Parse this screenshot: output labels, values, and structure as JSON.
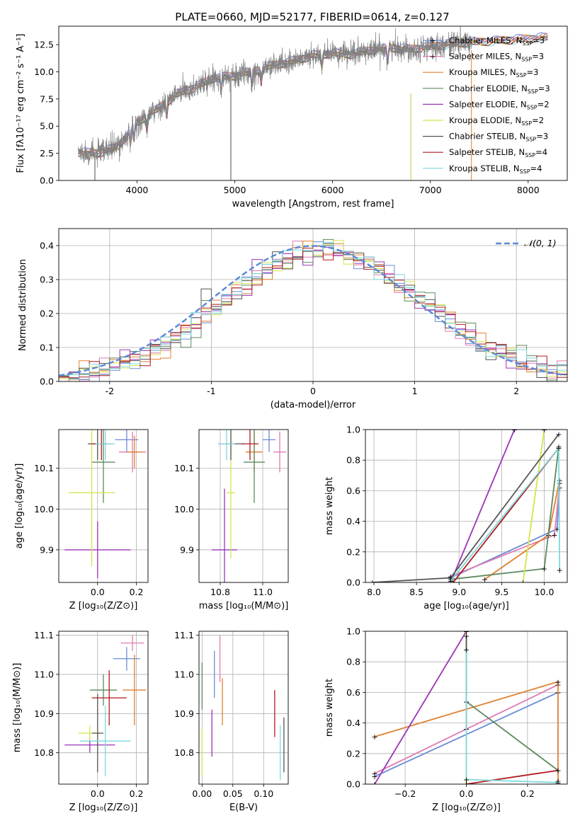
{
  "figure": {
    "title": "PLATE=0660, MJD=52177, FIBERID=0614, z=0.127"
  },
  "colors": {
    "Chabrier MILES": "#6a8cd6",
    "Salpeter MILES": "#e07ab4",
    "Kroupa MILES": "#e0812f",
    "Chabrier ELODIE": "#5c8a5e",
    "Salpeter ELODIE": "#9b35b5",
    "Kroupa ELODIE": "#d4e54a",
    "Chabrier STELIB": "#555555",
    "Salpeter STELIB": "#b0191f",
    "Kroupa STELIB": "#7fd7dc",
    "normal": "#5b8ad8"
  },
  "chart_data": [
    {
      "id": "spectrum",
      "type": "line",
      "title": "PLATE=0660, MJD=52177, FIBERID=0614, z=0.127",
      "xlabel": "wavelength [Angstrom, rest frame]",
      "ylabel": "Flux [fλ10⁻¹⁷ erg cm⁻² s⁻¹ A⁻¹]",
      "xlim": [
        3200,
        8400
      ],
      "ylim": [
        0,
        14.2
      ],
      "xticks": [
        4000,
        5000,
        6000,
        7000,
        8000
      ],
      "yticks": [
        0.0,
        2.5,
        5.0,
        7.5,
        10.0,
        12.5
      ],
      "legend_position": "top-right",
      "legend": [
        {
          "name": "Chabrier MILES",
          "nssp": "3"
        },
        {
          "name": "Salpeter MILES",
          "nssp": "3"
        },
        {
          "name": "Kroupa MILES",
          "nssp": "3"
        },
        {
          "name": "Chabrier ELODIE",
          "nssp": "3"
        },
        {
          "name": "Salpeter ELODIE",
          "nssp": "2"
        },
        {
          "name": "Kroupa ELODIE",
          "nssp": "2"
        },
        {
          "name": "Chabrier STELIB",
          "nssp": "3"
        },
        {
          "name": "Salpeter STELIB",
          "nssp": "4"
        },
        {
          "name": "Kroupa STELIB",
          "nssp": "4"
        }
      ],
      "continuum": {
        "x": [
          3400,
          3600,
          3800,
          4000,
          4200,
          4400,
          4600,
          4800,
          5000,
          5200,
          5400,
          5600,
          5800,
          6000,
          6200,
          6400,
          6600,
          6800,
          7000,
          7200,
          7400
        ],
        "y": [
          2.6,
          2.5,
          3.1,
          5.3,
          6.5,
          7.9,
          8.6,
          9.5,
          9.6,
          10.1,
          10.6,
          11.0,
          11.5,
          11.7,
          11.6,
          12.0,
          12.2,
          12.1,
          12.3,
          12.6,
          12.7
        ]
      },
      "data_extent": [
        3400,
        7420
      ],
      "model_extent": [
        3400,
        8200
      ]
    },
    {
      "id": "residuals",
      "type": "line",
      "xlabel": "(data-model)/error",
      "ylabel": "Normed distribution",
      "xlim": [
        -2.5,
        2.5
      ],
      "ylim": [
        0,
        0.45
      ],
      "xticks": [
        -2,
        -1,
        0,
        1,
        2
      ],
      "yticks": [
        0.0,
        0.1,
        0.2,
        0.3,
        0.4
      ],
      "legend_position": "top-right",
      "legend": [
        {
          "name": "𝒩(0, 1)"
        }
      ],
      "bin_width": 0.1
    },
    {
      "id": "age-vs-Z",
      "type": "scatter",
      "xlabel": "Z [log₁₀(Z/Z⊙)]",
      "ylabel": "age  [log₁₀(age/yr)]",
      "xlim": [
        -0.2,
        0.26
      ],
      "ylim": [
        9.82,
        10.195
      ],
      "xticks": [
        0.0,
        0.2
      ],
      "yticks": [
        9.9,
        10.0,
        10.1
      ],
      "points": [
        {
          "series": "Chabrier MILES",
          "x": 0.15,
          "y": 10.17,
          "xerr": 0.06,
          "yerr": 0.03
        },
        {
          "series": "Salpeter MILES",
          "x": 0.18,
          "y": 10.14,
          "xerr": 0.07,
          "yerr": 0.05
        },
        {
          "series": "Kroupa MILES",
          "x": 0.19,
          "y": 10.14,
          "xerr": 0.04,
          "yerr": 0.04
        },
        {
          "series": "Chabrier ELODIE",
          "x": 0.03,
          "y": 10.115,
          "xerr": 0.06,
          "yerr": 0.1
        },
        {
          "series": "Salpeter ELODIE",
          "x": 0.0,
          "y": 9.9,
          "xerr": 0.17,
          "yerr": 0.07
        },
        {
          "series": "Kroupa ELODIE",
          "x": -0.03,
          "y": 10.04,
          "xerr": 0.12,
          "yerr": 0.18
        },
        {
          "series": "Chabrier STELIB",
          "x": 0.0,
          "y": 10.16,
          "xerr": 0.05,
          "yerr": 0.04
        },
        {
          "series": "Salpeter STELIB",
          "x": 0.02,
          "y": 10.16,
          "xerr": 0.05,
          "yerr": 0.04
        },
        {
          "series": "Kroupa STELIB",
          "x": 0.04,
          "y": 10.16,
          "xerr": 0.05,
          "yerr": 0.04
        }
      ]
    },
    {
      "id": "age-vs-mass",
      "type": "scatter",
      "xlabel": "mass [log₁₀(M/M⊙)]",
      "ylabel": "",
      "xlim": [
        10.7,
        11.12
      ],
      "ylim": [
        9.82,
        10.195
      ],
      "xticks": [
        10.8,
        11.0
      ],
      "yticks": [
        9.9,
        10.0,
        10.1
      ],
      "points": [
        {
          "series": "Chabrier MILES",
          "x": 11.03,
          "y": 10.17,
          "xerr": 0.03,
          "yerr": 0.03
        },
        {
          "series": "Salpeter MILES",
          "x": 11.08,
          "y": 10.14,
          "xerr": 0.03,
          "yerr": 0.05
        },
        {
          "series": "Kroupa MILES",
          "x": 10.96,
          "y": 10.14,
          "xerr": 0.04,
          "yerr": 0.05
        },
        {
          "series": "Chabrier ELODIE",
          "x": 10.96,
          "y": 10.115,
          "xerr": 0.05,
          "yerr": 0.1
        },
        {
          "series": "Salpeter ELODIE",
          "x": 10.82,
          "y": 9.9,
          "xerr": 0.06,
          "yerr": 0.15
        },
        {
          "series": "Kroupa ELODIE",
          "x": 10.85,
          "y": 10.04,
          "xerr": 0.02,
          "yerr": 0.16
        },
        {
          "series": "Chabrier STELIB",
          "x": 10.85,
          "y": 10.16,
          "xerr": 0.06,
          "yerr": 0.04
        },
        {
          "series": "Salpeter STELIB",
          "x": 10.94,
          "y": 10.16,
          "xerr": 0.04,
          "yerr": 0.04
        },
        {
          "series": "Kroupa STELIB",
          "x": 10.83,
          "y": 10.16,
          "xerr": 0.04,
          "yerr": 0.04
        }
      ]
    },
    {
      "id": "mass-weight-vs-age",
      "type": "line",
      "xlabel": "age  [log₁₀(age/yr)]",
      "ylabel": "mass weight",
      "xlim": [
        7.9,
        10.27
      ],
      "ylim": [
        0,
        1
      ],
      "xticks": [
        8.0,
        8.5,
        9.0,
        9.5,
        10.0
      ],
      "yticks": [
        0.0,
        0.2,
        0.4,
        0.6,
        0.8,
        1.0
      ],
      "series": [
        {
          "name": "Chabrier MILES",
          "x": [
            8.9,
            10.15,
            10.18
          ],
          "y": [
            0.03,
            0.35,
            0.62
          ]
        },
        {
          "name": "Salpeter MILES",
          "x": [
            8.9,
            10.12,
            10.18
          ],
          "y": [
            0.04,
            0.31,
            0.65
          ]
        },
        {
          "name": "Kroupa MILES",
          "x": [
            9.3,
            10.05,
            10.18
          ],
          "y": [
            0.02,
            0.31,
            0.67
          ]
        },
        {
          "name": "Chabrier ELODIE",
          "x": [
            8.9,
            10.0,
            10.17
          ],
          "y": [
            0.02,
            0.09,
            0.89
          ]
        },
        {
          "name": "Salpeter ELODIE",
          "x": [
            8.9,
            9.65
          ],
          "y": [
            0.0,
            1.0
          ]
        },
        {
          "name": "Kroupa ELODIE",
          "x": [
            9.75,
            10.0
          ],
          "y": [
            0.0,
            1.0
          ]
        },
        {
          "name": "Chabrier STELIB",
          "x": [
            7.98,
            8.9,
            10.17
          ],
          "y": [
            0.0,
            0.03,
            0.97
          ]
        },
        {
          "name": "Salpeter STELIB",
          "x": [
            8.93,
            10.17
          ],
          "y": [
            0.0,
            0.88
          ]
        },
        {
          "name": "Kroupa STELIB",
          "x": [
            8.9,
            10.17,
            10.18
          ],
          "y": [
            0.01,
            0.88,
            0.08
          ]
        }
      ]
    },
    {
      "id": "mass-vs-Z",
      "type": "scatter",
      "xlabel": "Z [log₁₀(Z/Z⊙)]",
      "ylabel": "mass [log₁₀(M/M⊙)]",
      "xlim": [
        -0.2,
        0.26
      ],
      "ylim": [
        10.72,
        11.11
      ],
      "xticks": [
        0.0,
        0.2
      ],
      "yticks": [
        10.8,
        10.9,
        11.0,
        11.1
      ],
      "points": [
        {
          "series": "Chabrier MILES",
          "x": 0.15,
          "y": 11.04,
          "xerr": 0.07,
          "yerr": 0.03
        },
        {
          "series": "Salpeter MILES",
          "x": 0.18,
          "y": 11.08,
          "xerr": 0.06,
          "yerr": 0.02
        },
        {
          "series": "Kroupa MILES",
          "x": 0.19,
          "y": 10.96,
          "xerr": 0.06,
          "yerr": 0.09
        },
        {
          "series": "Chabrier ELODIE",
          "x": 0.03,
          "y": 10.96,
          "xerr": 0.07,
          "yerr": 0.04
        },
        {
          "series": "Salpeter ELODIE",
          "x": -0.04,
          "y": 10.82,
          "xerr": 0.13,
          "yerr": 0.02
        },
        {
          "series": "Kroupa ELODIE",
          "x": -0.04,
          "y": 10.85,
          "xerr": 0.06,
          "yerr": 0.02
        },
        {
          "series": "Chabrier STELIB",
          "x": 0.0,
          "y": 10.85,
          "xerr": 0.03,
          "yerr": 0.1
        },
        {
          "series": "Salpeter STELIB",
          "x": 0.06,
          "y": 10.94,
          "xerr": 0.09,
          "yerr": 0.07
        },
        {
          "series": "Kroupa STELIB",
          "x": 0.04,
          "y": 10.83,
          "xerr": 0.13,
          "yerr": 0.09
        }
      ]
    },
    {
      "id": "mass-vs-EBV",
      "type": "scatter",
      "xlabel": "E(B-V)",
      "ylabel": "",
      "xlim": [
        -0.005,
        0.14
      ],
      "ylim": [
        10.72,
        11.11
      ],
      "xticks": [
        0.0,
        0.05,
        0.1
      ],
      "xtick_labels": [
        "0.00",
        "0.05",
        "0.10"
      ],
      "yticks": [
        10.8,
        10.9,
        11.0,
        11.1
      ],
      "points": [
        {
          "series": "Chabrier MILES",
          "x": 0.02,
          "y": 11.0,
          "xerr": 0,
          "yerr": 0.06
        },
        {
          "series": "Salpeter MILES",
          "x": 0.029,
          "y": 11.04,
          "xerr": 0,
          "yerr": 0.06
        },
        {
          "series": "Kroupa MILES",
          "x": 0.033,
          "y": 10.93,
          "xerr": 0,
          "yerr": 0.06
        },
        {
          "series": "Chabrier ELODIE",
          "x": 0.0,
          "y": 10.97,
          "xerr": 0,
          "yerr": 0.06
        },
        {
          "series": "Salpeter ELODIE",
          "x": 0.016,
          "y": 10.85,
          "xerr": 0,
          "yerr": 0.06
        },
        {
          "series": "Kroupa ELODIE",
          "x": 0.0,
          "y": 10.8,
          "xerr": 0,
          "yerr": 0.06
        },
        {
          "series": "Chabrier STELIB",
          "x": 0.133,
          "y": 10.82,
          "xerr": 0,
          "yerr": 0.07
        },
        {
          "series": "Salpeter STELIB",
          "x": 0.118,
          "y": 10.9,
          "xerr": 0,
          "yerr": 0.06
        },
        {
          "series": "Kroupa STELIB",
          "x": 0.127,
          "y": 10.8,
          "xerr": 0,
          "yerr": 0.07
        }
      ]
    },
    {
      "id": "mass-weight-vs-Z",
      "type": "line",
      "xlabel": "Z [log₁₀(Z/Z⊙)]",
      "ylabel": "mass weight",
      "xlim": [
        -0.33,
        0.33
      ],
      "ylim": [
        0,
        1
      ],
      "xticks": [
        -0.2,
        0.0,
        0.2
      ],
      "yticks": [
        0.0,
        0.2,
        0.4,
        0.6,
        0.8,
        1.0
      ],
      "series": [
        {
          "name": "Chabrier MILES",
          "x": [
            -0.3,
            0.3
          ],
          "y": [
            0.05,
            0.6
          ]
        },
        {
          "name": "Salpeter MILES",
          "x": [
            -0.3,
            0.3
          ],
          "y": [
            0.07,
            0.65
          ]
        },
        {
          "name": "Kroupa MILES",
          "x": [
            -0.3,
            0.3,
            0.3
          ],
          "y": [
            0.31,
            0.67,
            0.02
          ]
        },
        {
          "name": "Chabrier ELODIE",
          "x": [
            0.0,
            0.3
          ],
          "y": [
            0.54,
            0.09
          ]
        },
        {
          "name": "Salpeter ELODIE",
          "x": [
            -0.3,
            0.0
          ],
          "y": [
            0.0,
            1.0
          ]
        },
        {
          "name": "Kroupa ELODIE",
          "x": [
            0.0,
            0.0
          ],
          "y": [
            0.0,
            1.0
          ]
        },
        {
          "name": "Chabrier STELIB",
          "x": [
            0.0,
            0.0
          ],
          "y": [
            0.36,
            0.97
          ]
        },
        {
          "name": "Salpeter STELIB",
          "x": [
            0.0,
            0.3
          ],
          "y": [
            0.0,
            0.09
          ]
        },
        {
          "name": "Kroupa STELIB",
          "x": [
            0.0,
            0.0,
            0.3
          ],
          "y": [
            0.88,
            0.03,
            0.01
          ]
        }
      ]
    }
  ]
}
